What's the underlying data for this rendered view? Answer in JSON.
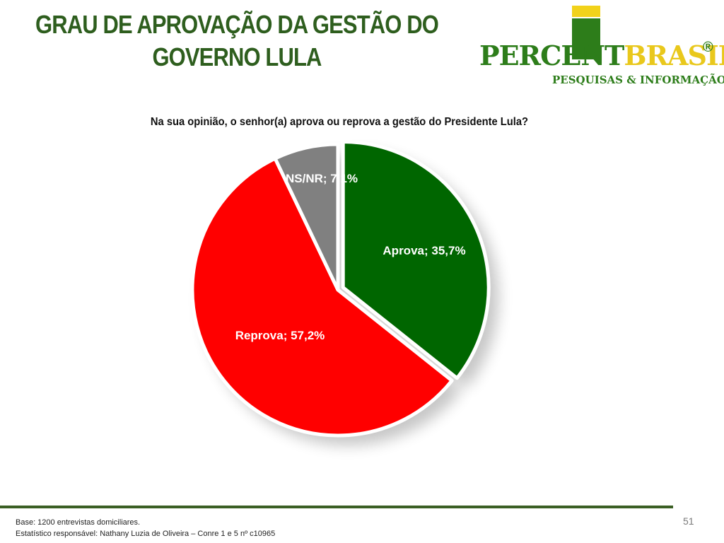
{
  "header": {
    "title_line1": "GRAU DE APROVAÇÃO DA GESTÃO DO",
    "title_line2": "GOVERNO LULA"
  },
  "logo": {
    "word_part1": "PERCENT",
    "word_part2": "BRASIL",
    "registered": "®",
    "subtitle": "PESQUISAS & INFORMAÇÃO",
    "colors": {
      "green": "#2d7d1a",
      "yellow": "#e9c81c"
    }
  },
  "chart_data": {
    "type": "pie",
    "title": "Na sua opinião, o senhor(a) aprova ou reprova a gestão do Presidente Lula?",
    "slices": [
      {
        "label": "Aprova",
        "value": 35.7,
        "text": "Aprova; 35,7%",
        "color": "#006600",
        "exploded": true
      },
      {
        "label": "Reprova",
        "value": 57.2,
        "text": "Reprova; 57,2%",
        "color": "#ff0000",
        "exploded": false
      },
      {
        "label": "NS/NR",
        "value": 7.1,
        "text": "NS/NR; 7,1%",
        "color": "#808080",
        "exploded": false
      }
    ],
    "legend": "none"
  },
  "footer": {
    "base": "Base: 1200 entrevistas domiciliares.",
    "statistician": "Estatístico responsável: Nathany Luzia de Oliveira – Conre 1 e 5 nº c10965"
  },
  "page_number": "51"
}
